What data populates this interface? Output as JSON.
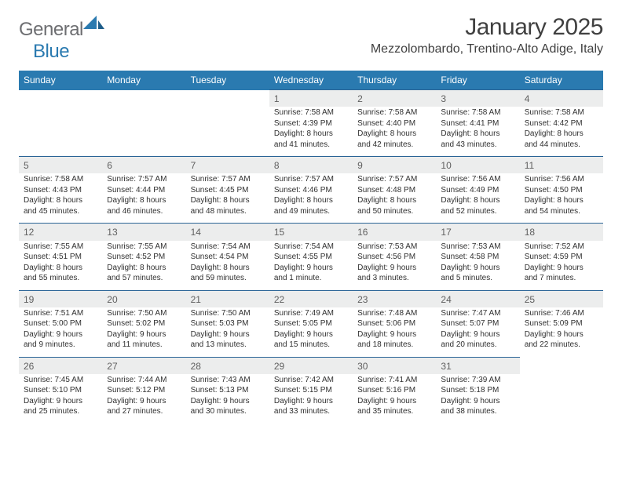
{
  "logo": {
    "general": "General",
    "blue": "Blue"
  },
  "title": "January 2025",
  "location": "Mezzolombardo, Trentino-Alto Adige, Italy",
  "colors": {
    "header_bg": "#2a7ab0",
    "header_text": "#ffffff",
    "daynum_bg": "#eceded",
    "rule": "#2a6496",
    "text": "#303030",
    "title": "#404040",
    "logo_gray": "#6d6e71",
    "logo_blue": "#2a7ab0"
  },
  "weekdays": [
    "Sunday",
    "Monday",
    "Tuesday",
    "Wednesday",
    "Thursday",
    "Friday",
    "Saturday"
  ],
  "weeks": [
    [
      null,
      null,
      null,
      {
        "n": "1",
        "sr": "7:58 AM",
        "ss": "4:39 PM",
        "dl": "8 hours and 41 minutes."
      },
      {
        "n": "2",
        "sr": "7:58 AM",
        "ss": "4:40 PM",
        "dl": "8 hours and 42 minutes."
      },
      {
        "n": "3",
        "sr": "7:58 AM",
        "ss": "4:41 PM",
        "dl": "8 hours and 43 minutes."
      },
      {
        "n": "4",
        "sr": "7:58 AM",
        "ss": "4:42 PM",
        "dl": "8 hours and 44 minutes."
      }
    ],
    [
      {
        "n": "5",
        "sr": "7:58 AM",
        "ss": "4:43 PM",
        "dl": "8 hours and 45 minutes."
      },
      {
        "n": "6",
        "sr": "7:57 AM",
        "ss": "4:44 PM",
        "dl": "8 hours and 46 minutes."
      },
      {
        "n": "7",
        "sr": "7:57 AM",
        "ss": "4:45 PM",
        "dl": "8 hours and 48 minutes."
      },
      {
        "n": "8",
        "sr": "7:57 AM",
        "ss": "4:46 PM",
        "dl": "8 hours and 49 minutes."
      },
      {
        "n": "9",
        "sr": "7:57 AM",
        "ss": "4:48 PM",
        "dl": "8 hours and 50 minutes."
      },
      {
        "n": "10",
        "sr": "7:56 AM",
        "ss": "4:49 PM",
        "dl": "8 hours and 52 minutes."
      },
      {
        "n": "11",
        "sr": "7:56 AM",
        "ss": "4:50 PM",
        "dl": "8 hours and 54 minutes."
      }
    ],
    [
      {
        "n": "12",
        "sr": "7:55 AM",
        "ss": "4:51 PM",
        "dl": "8 hours and 55 minutes."
      },
      {
        "n": "13",
        "sr": "7:55 AM",
        "ss": "4:52 PM",
        "dl": "8 hours and 57 minutes."
      },
      {
        "n": "14",
        "sr": "7:54 AM",
        "ss": "4:54 PM",
        "dl": "8 hours and 59 minutes."
      },
      {
        "n": "15",
        "sr": "7:54 AM",
        "ss": "4:55 PM",
        "dl": "9 hours and 1 minute."
      },
      {
        "n": "16",
        "sr": "7:53 AM",
        "ss": "4:56 PM",
        "dl": "9 hours and 3 minutes."
      },
      {
        "n": "17",
        "sr": "7:53 AM",
        "ss": "4:58 PM",
        "dl": "9 hours and 5 minutes."
      },
      {
        "n": "18",
        "sr": "7:52 AM",
        "ss": "4:59 PM",
        "dl": "9 hours and 7 minutes."
      }
    ],
    [
      {
        "n": "19",
        "sr": "7:51 AM",
        "ss": "5:00 PM",
        "dl": "9 hours and 9 minutes."
      },
      {
        "n": "20",
        "sr": "7:50 AM",
        "ss": "5:02 PM",
        "dl": "9 hours and 11 minutes."
      },
      {
        "n": "21",
        "sr": "7:50 AM",
        "ss": "5:03 PM",
        "dl": "9 hours and 13 minutes."
      },
      {
        "n": "22",
        "sr": "7:49 AM",
        "ss": "5:05 PM",
        "dl": "9 hours and 15 minutes."
      },
      {
        "n": "23",
        "sr": "7:48 AM",
        "ss": "5:06 PM",
        "dl": "9 hours and 18 minutes."
      },
      {
        "n": "24",
        "sr": "7:47 AM",
        "ss": "5:07 PM",
        "dl": "9 hours and 20 minutes."
      },
      {
        "n": "25",
        "sr": "7:46 AM",
        "ss": "5:09 PM",
        "dl": "9 hours and 22 minutes."
      }
    ],
    [
      {
        "n": "26",
        "sr": "7:45 AM",
        "ss": "5:10 PM",
        "dl": "9 hours and 25 minutes."
      },
      {
        "n": "27",
        "sr": "7:44 AM",
        "ss": "5:12 PM",
        "dl": "9 hours and 27 minutes."
      },
      {
        "n": "28",
        "sr": "7:43 AM",
        "ss": "5:13 PM",
        "dl": "9 hours and 30 minutes."
      },
      {
        "n": "29",
        "sr": "7:42 AM",
        "ss": "5:15 PM",
        "dl": "9 hours and 33 minutes."
      },
      {
        "n": "30",
        "sr": "7:41 AM",
        "ss": "5:16 PM",
        "dl": "9 hours and 35 minutes."
      },
      {
        "n": "31",
        "sr": "7:39 AM",
        "ss": "5:18 PM",
        "dl": "9 hours and 38 minutes."
      },
      null
    ]
  ],
  "labels": {
    "sunrise": "Sunrise:",
    "sunset": "Sunset:",
    "daylight": "Daylight:"
  }
}
